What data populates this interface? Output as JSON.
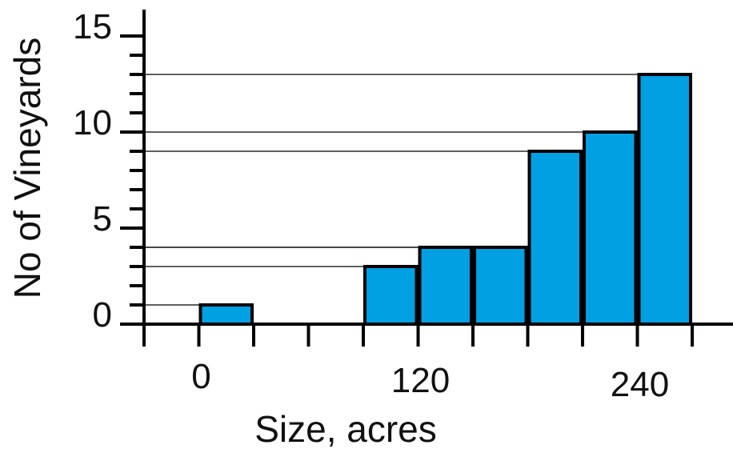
{
  "chart_data": {
    "type": "bar",
    "title": "",
    "xlabel": "Size, acres",
    "ylabel": "No of Vineyards",
    "bins": [
      [
        0,
        30
      ],
      [
        30,
        60
      ],
      [
        60,
        90
      ],
      [
        90,
        120
      ],
      [
        120,
        150
      ],
      [
        150,
        180
      ],
      [
        180,
        210
      ],
      [
        210,
        240
      ],
      [
        240,
        270
      ]
    ],
    "values": [
      1,
      0,
      0,
      3,
      4,
      4,
      9,
      10,
      13
    ],
    "xlim": [
      -30,
      270
    ],
    "ylim": [
      0,
      15
    ],
    "x_ticks": [
      -30,
      0,
      30,
      60,
      90,
      120,
      150,
      180,
      210,
      240,
      270
    ],
    "x_tick_labels": [
      "0",
      "120",
      "240"
    ],
    "x_tick_label_values": [
      0,
      120,
      240
    ],
    "y_tick_labels": [
      "0",
      "5",
      "10",
      "15"
    ],
    "y_tick_label_values": [
      0,
      5,
      10,
      15
    ],
    "y_minor_step": 1,
    "grid": false,
    "reference_lines_at_bar_tops": true,
    "bar_color": "#00a0e3",
    "edge_color": "#000000"
  }
}
